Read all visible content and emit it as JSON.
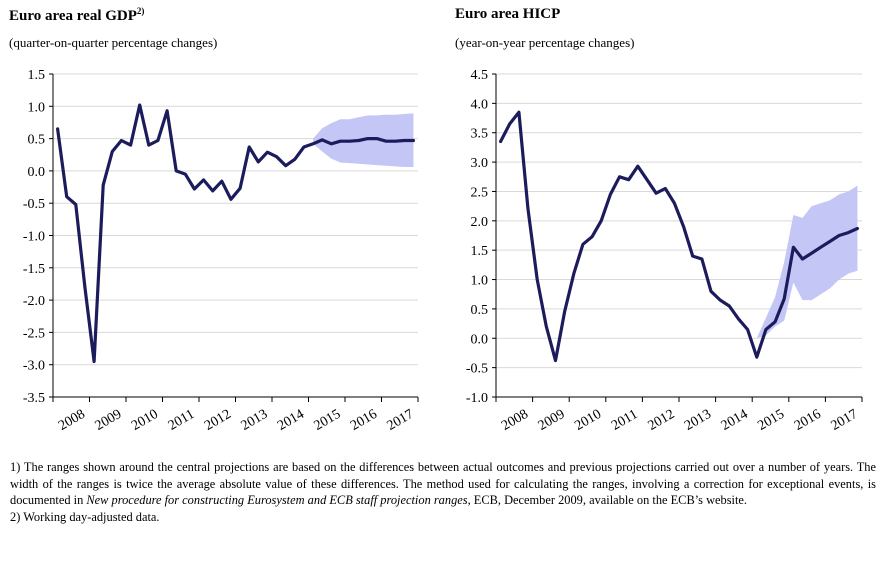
{
  "panels": [
    {
      "title": "Euro area real GDP",
      "title_sup": "2)",
      "subtitle": "(quarter-on-quarter percentage changes)"
    },
    {
      "title": "Euro area HICP",
      "title_sup": "",
      "subtitle": "(year-on-year percentage changes)"
    }
  ],
  "footnotes": {
    "note1_a": "1) The ranges shown around the central projections are based on the differences between actual outcomes and previous projections carried out over a number of years. The width of the ranges is twice the average absolute value of these differences. The method used for calculating the ranges, involving a correction for exceptional events, is documented in ",
    "note1_italic": "New procedure for constructing Eurosystem and ECB staff projection ranges",
    "note1_b": ", ECB, December 2009, available on the ECB’s website.",
    "note2": "2) Working day-adjusted data."
  },
  "colors": {
    "line": "#1c1c5c",
    "band": "#c4c6f5",
    "grid": "#d9d9d9",
    "axis": "#000000"
  },
  "chart_data": [
    {
      "type": "line",
      "title": "Euro area real GDP",
      "subtitle": "(quarter-on-quarter percentage changes)",
      "x_tick_labels": [
        "2008",
        "2009",
        "2010",
        "2011",
        "2012",
        "2013",
        "2014",
        "2015",
        "2016",
        "2017"
      ],
      "y_ticks": [
        "1.5",
        "1.0",
        "0.5",
        "0.0",
        "-0.5",
        "-1.0",
        "-1.5",
        "-2.0",
        "-2.5",
        "-3.0",
        "-3.5"
      ],
      "ylim": [
        -3.5,
        1.5
      ],
      "xlim": [
        2008,
        2018
      ],
      "grid": "horizontal",
      "series": [
        {
          "x": [
            2008.125,
            2008.375,
            2008.625,
            2008.875,
            2009.125,
            2009.375,
            2009.625,
            2009.875,
            2010.125,
            2010.375,
            2010.625,
            2010.875,
            2011.125,
            2011.375,
            2011.625,
            2011.875,
            2012.125,
            2012.375,
            2012.625,
            2012.875,
            2013.125,
            2013.375,
            2013.625,
            2013.875,
            2014.125,
            2014.375,
            2014.625,
            2014.875,
            2015.125,
            2015.375,
            2015.625,
            2015.875,
            2016.125,
            2016.375,
            2016.625,
            2016.875,
            2017.125,
            2017.375,
            2017.625,
            2017.875
          ],
          "values": [
            0.65,
            -0.4,
            -0.52,
            -1.8,
            -2.95,
            -0.22,
            0.3,
            0.47,
            0.4,
            1.02,
            0.4,
            0.47,
            0.93,
            0.0,
            -0.05,
            -0.28,
            -0.14,
            -0.31,
            -0.16,
            -0.44,
            -0.27,
            0.37,
            0.14,
            0.29,
            0.22,
            0.08,
            0.18,
            0.37,
            0.42,
            0.48,
            0.42,
            0.46,
            0.46,
            0.47,
            0.5,
            0.5,
            0.46,
            0.46,
            0.47,
            0.47
          ]
        }
      ],
      "range": {
        "x": [
          2015.125,
          2015.375,
          2015.625,
          2015.875,
          2016.125,
          2016.375,
          2016.625,
          2016.875,
          2017.125,
          2017.375,
          2017.625,
          2017.875
        ],
        "upper": [
          0.5,
          0.66,
          0.74,
          0.8,
          0.8,
          0.83,
          0.86,
          0.86,
          0.87,
          0.87,
          0.88,
          0.89
        ],
        "lower": [
          0.42,
          0.3,
          0.19,
          0.13,
          0.12,
          0.11,
          0.1,
          0.09,
          0.08,
          0.07,
          0.06,
          0.06
        ]
      }
    },
    {
      "type": "line",
      "title": "Euro area HICP",
      "subtitle": "(year-on-year percentage changes)",
      "x_tick_labels": [
        "2008",
        "2009",
        "2010",
        "2011",
        "2012",
        "2013",
        "2014",
        "2015",
        "2016",
        "2017"
      ],
      "y_ticks": [
        "4.5",
        "4.0",
        "3.5",
        "3.0",
        "2.5",
        "2.0",
        "1.5",
        "1.0",
        "0.5",
        "0.0",
        "-0.5",
        "-1.0"
      ],
      "ylim": [
        -1.0,
        4.5
      ],
      "xlim": [
        2008,
        2018
      ],
      "grid": "horizontal",
      "series": [
        {
          "x": [
            2008.125,
            2008.375,
            2008.625,
            2008.875,
            2009.125,
            2009.375,
            2009.625,
            2009.875,
            2010.125,
            2010.375,
            2010.625,
            2010.875,
            2011.125,
            2011.375,
            2011.625,
            2011.875,
            2012.125,
            2012.375,
            2012.625,
            2012.875,
            2013.125,
            2013.375,
            2013.625,
            2013.875,
            2014.125,
            2014.375,
            2014.625,
            2014.875,
            2015.125,
            2015.375,
            2015.625,
            2015.875,
            2016.125,
            2016.375,
            2016.625,
            2016.875,
            2017.125,
            2017.375,
            2017.625,
            2017.875
          ],
          "values": [
            3.35,
            3.65,
            3.85,
            2.2,
            1.0,
            0.2,
            -0.38,
            0.45,
            1.1,
            1.6,
            1.73,
            2.0,
            2.45,
            2.75,
            2.7,
            2.93,
            2.7,
            2.47,
            2.55,
            2.3,
            1.9,
            1.4,
            1.35,
            0.8,
            0.65,
            0.55,
            0.33,
            0.15,
            -0.32,
            0.15,
            0.28,
            0.67,
            1.55,
            1.35,
            1.45,
            1.55,
            1.65,
            1.75,
            1.8,
            1.87
          ]
        }
      ],
      "range": {
        "x": [
          2015.125,
          2015.375,
          2015.625,
          2015.875,
          2016.125,
          2016.375,
          2016.625,
          2016.875,
          2017.125,
          2017.375,
          2017.625,
          2017.875
        ],
        "upper": [
          0.0,
          0.35,
          0.7,
          1.3,
          2.1,
          2.05,
          2.25,
          2.3,
          2.35,
          2.45,
          2.5,
          2.6
        ],
        "lower": [
          0.0,
          0.05,
          0.2,
          0.3,
          0.95,
          0.65,
          0.65,
          0.75,
          0.85,
          1.0,
          1.1,
          1.15
        ]
      }
    }
  ]
}
